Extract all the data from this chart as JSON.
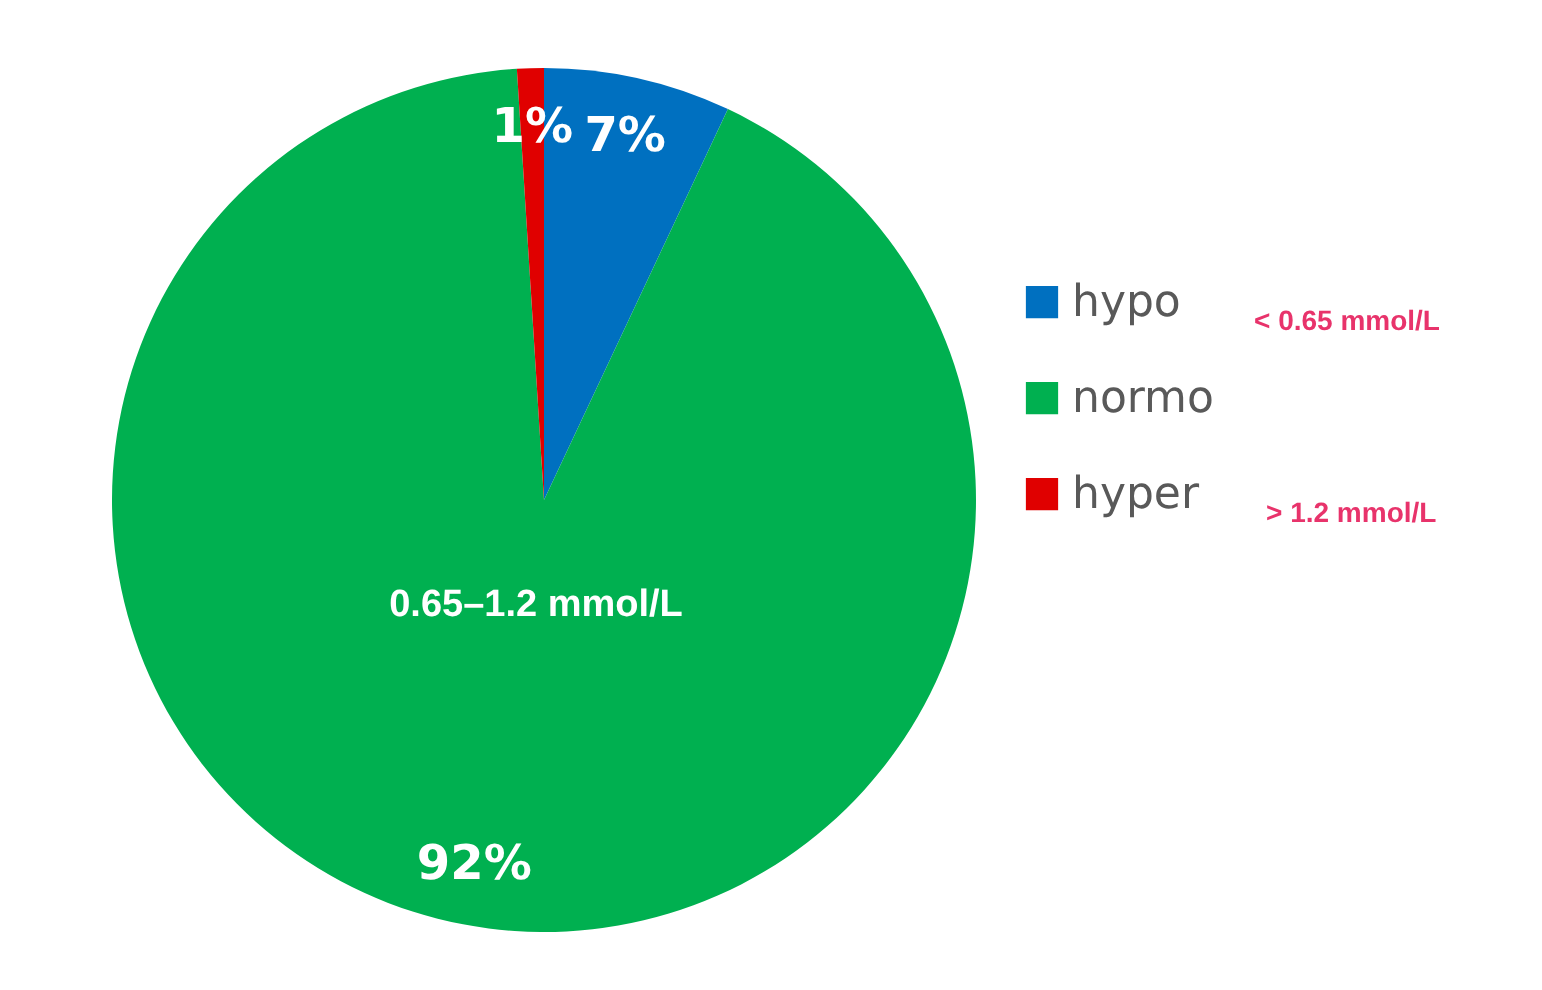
{
  "chart_data": {
    "type": "pie",
    "categories": [
      "hypo",
      "normo",
      "hyper"
    ],
    "values": [
      7,
      92,
      1
    ],
    "colors": [
      "#0070c0",
      "#00b050",
      "#e00000"
    ],
    "value_labels": [
      "7%",
      "92%",
      "1%"
    ],
    "legend": "right",
    "annotations": [
      "< 0.65 mmol/L",
      "0.65–1.2 mmol/L",
      "> 1.2 mmol/L"
    ]
  }
}
